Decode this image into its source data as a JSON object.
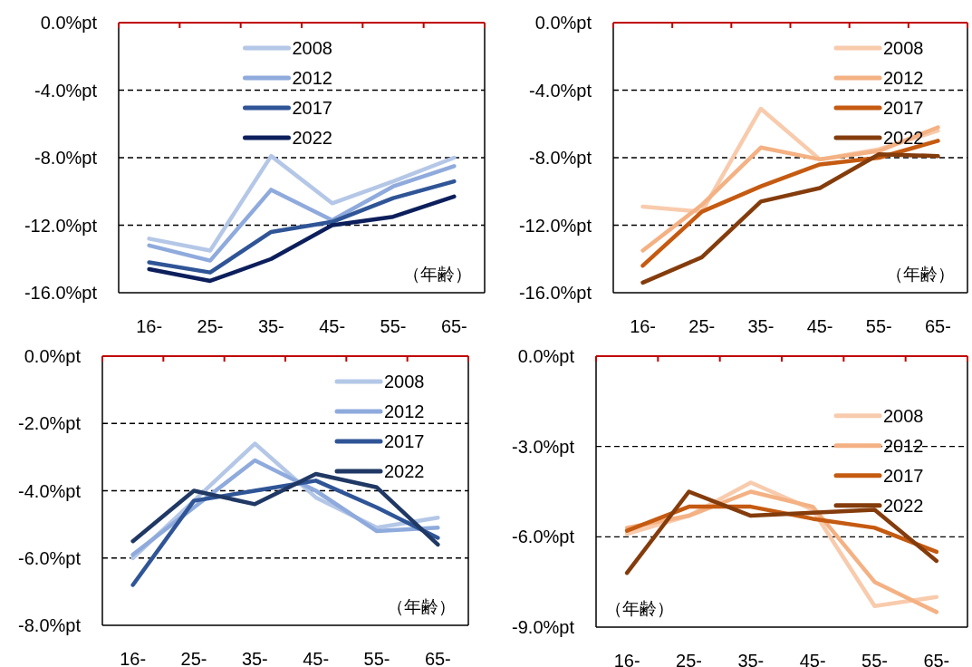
{
  "chart_data": [
    {
      "type": "line",
      "categories": [
        "16-",
        "25-",
        "35-",
        "45-",
        "55-",
        "65-"
      ],
      "ylim": [
        -16,
        0
      ],
      "yticks": [
        {
          "value": 0,
          "label": "0.0%pt"
        },
        {
          "value": -4,
          "label": "-4.0%pt"
        },
        {
          "value": -8,
          "label": "-8.0%pt"
        },
        {
          "value": -12,
          "label": "-12.0%pt"
        },
        {
          "value": -16,
          "label": "-16.0%pt"
        }
      ],
      "grid": "y",
      "legend": "top",
      "line_style": "solid",
      "annotations": [
        "（年齢）"
      ],
      "series": [
        {
          "name": "2008",
          "color": "#b4c7e7",
          "values": [
            -12.8,
            -13.5,
            -7.9,
            -10.7,
            -9.4,
            -8.0
          ]
        },
        {
          "name": "2012",
          "color": "#8faadc",
          "values": [
            -13.2,
            -14.1,
            -9.9,
            -11.7,
            -9.7,
            -8.5
          ]
        },
        {
          "name": "2017",
          "color": "#2f5597",
          "values": [
            -14.2,
            -14.8,
            -12.4,
            -11.8,
            -10.4,
            -9.4
          ]
        },
        {
          "name": "2022",
          "color": "#0c1f5c",
          "values": [
            -14.6,
            -15.3,
            -14.0,
            -12.0,
            -11.5,
            -10.3
          ]
        }
      ]
    },
    {
      "type": "line",
      "categories": [
        "16-",
        "25-",
        "35-",
        "45-",
        "55-",
        "65-"
      ],
      "ylim": [
        -16,
        0
      ],
      "yticks": [
        {
          "value": 0,
          "label": "0.0%pt"
        },
        {
          "value": -4,
          "label": "-4.0%pt"
        },
        {
          "value": -8,
          "label": "-8.0%pt"
        },
        {
          "value": -12,
          "label": "-12.0%pt"
        },
        {
          "value": -16,
          "label": "-16.0%pt"
        }
      ],
      "grid": "y",
      "legend": "top right",
      "line_style": "solid",
      "annotations": [
        "（年齢）"
      ],
      "series": [
        {
          "name": "2008",
          "color": "#f8cbad",
          "values": [
            -10.9,
            -11.2,
            -5.1,
            -8.1,
            -7.5,
            -6.4
          ]
        },
        {
          "name": "2012",
          "color": "#f4b183",
          "values": [
            -13.5,
            -10.8,
            -7.4,
            -8.1,
            -7.6,
            -6.2
          ]
        },
        {
          "name": "2017",
          "color": "#c55a11",
          "values": [
            -14.4,
            -11.2,
            -9.7,
            -8.4,
            -8.0,
            -7.0
          ]
        },
        {
          "name": "2022",
          "color": "#843c0c",
          "values": [
            -15.4,
            -13.9,
            -10.6,
            -9.8,
            -7.8,
            -7.9
          ]
        }
      ]
    },
    {
      "type": "line",
      "categories": [
        "16-",
        "25-",
        "35-",
        "45-",
        "55-",
        "65-"
      ],
      "ylim": [
        -8,
        0
      ],
      "yticks": [
        {
          "value": 0,
          "label": "0.0%pt"
        },
        {
          "value": -2,
          "label": "-2.0%pt"
        },
        {
          "value": -4,
          "label": "-4.0%pt"
        },
        {
          "value": -6,
          "label": "-6.0%pt"
        },
        {
          "value": -8,
          "label": "-8.0%pt"
        }
      ],
      "grid": "y",
      "legend": "top right",
      "line_style": "solid",
      "annotations": [
        "（年齢）"
      ],
      "series": [
        {
          "name": "2008",
          "color": "#b4c7e7",
          "values": [
            -6.0,
            -4.3,
            -2.6,
            -4.2,
            -5.1,
            -4.8
          ]
        },
        {
          "name": "2012",
          "color": "#8faadc",
          "values": [
            -5.9,
            -4.5,
            -3.1,
            -4.0,
            -5.2,
            -5.1
          ]
        },
        {
          "name": "2017",
          "color": "#2f5597",
          "values": [
            -6.8,
            -4.3,
            -4.0,
            -3.7,
            -4.5,
            -5.4
          ]
        },
        {
          "name": "2022",
          "color": "#203864",
          "values": [
            -5.5,
            -4.0,
            -4.4,
            -3.5,
            -3.9,
            -5.6
          ]
        }
      ]
    },
    {
      "type": "line",
      "categories": [
        "16-",
        "25-",
        "35-",
        "45-",
        "55-",
        "65-"
      ],
      "ylim": [
        -9,
        0
      ],
      "yticks": [
        {
          "value": 0,
          "label": "0.0%pt"
        },
        {
          "value": -3,
          "label": "-3.0%pt"
        },
        {
          "value": -6,
          "label": "-6.0%pt"
        },
        {
          "value": -9,
          "label": "-9.0%pt"
        }
      ],
      "grid": "y",
      "legend": "right",
      "line_style": "solid",
      "annotations": [
        "（年齢）"
      ],
      "series": [
        {
          "name": "2008",
          "color": "#f8cbad",
          "values": [
            -5.9,
            -5.3,
            -4.2,
            -5.1,
            -8.3,
            -8.0
          ]
        },
        {
          "name": "2012",
          "color": "#f4b183",
          "values": [
            -5.7,
            -5.3,
            -4.5,
            -5.0,
            -7.5,
            -8.5
          ]
        },
        {
          "name": "2017",
          "color": "#c55a11",
          "values": [
            -5.8,
            -5.0,
            -5.0,
            -5.4,
            -5.7,
            -6.5
          ]
        },
        {
          "name": "2022",
          "color": "#843c0c",
          "values": [
            -7.2,
            -4.5,
            -5.3,
            -5.2,
            -5.1,
            -6.8
          ]
        }
      ]
    }
  ]
}
